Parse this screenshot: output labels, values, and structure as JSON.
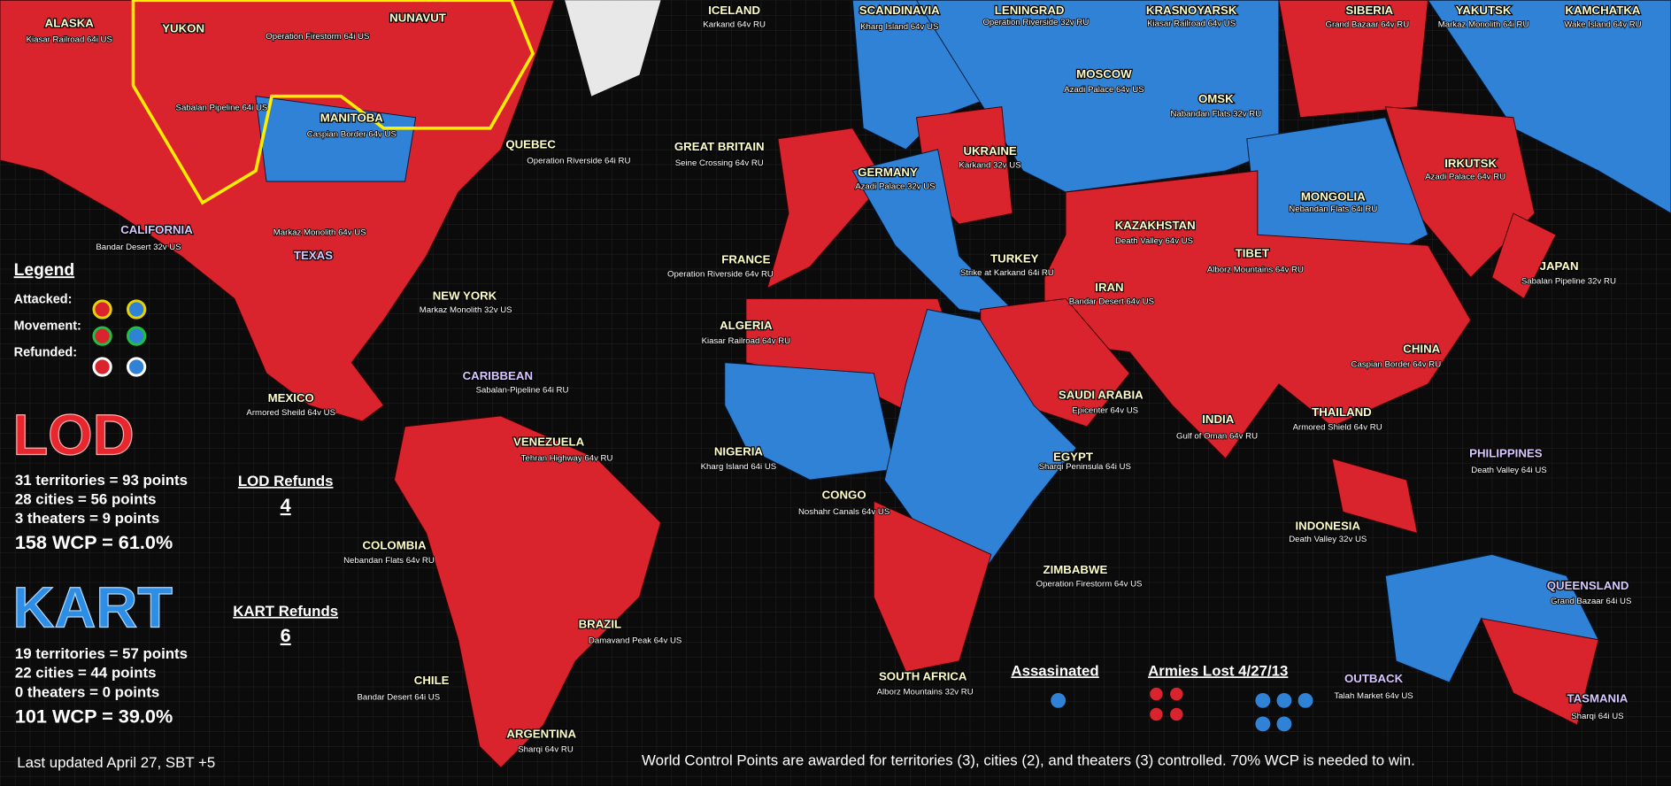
{
  "territories": [
    {
      "name": "ALASKA",
      "map": "Kiasar Railroad 64i US"
    },
    {
      "name": "YUKON",
      "map": "Sabalan Pipeline 64i US"
    },
    {
      "name": "NUNAVUT",
      "map": "Operation Firestorm 64i US"
    },
    {
      "name": "MANITOBA",
      "map": "Caspian Border 64v US"
    },
    {
      "name": "QUEBEC",
      "map": "Operation Riverside 64i RU"
    },
    {
      "name": "CALIFORNIA",
      "map": "Bandar Desert 32v US"
    },
    {
      "name": "TEXAS",
      "map": "Markaz Monolith 64v US"
    },
    {
      "name": "NEW YORK",
      "map": "Markaz Monolith 32v US"
    },
    {
      "name": "MEXICO",
      "map": "Armored Sheild 64v US"
    },
    {
      "name": "CARIBBEAN",
      "map": "Sabalan-Pipeline 64i RU"
    },
    {
      "name": "VENEZUELA",
      "map": "Tehran Highway 64v RU"
    },
    {
      "name": "COLOMBIA",
      "map": "Nebandan Flats 64v RU"
    },
    {
      "name": "BRAZIL",
      "map": "Damavand Peak 64v US"
    },
    {
      "name": "CHILE",
      "map": "Bandar Desert 64i US"
    },
    {
      "name": "ARGENTINA",
      "map": "Sharqi 64v RU"
    },
    {
      "name": "ICELAND",
      "map": "Karkand 64v RU"
    },
    {
      "name": "GREAT BRITAIN",
      "map": "Seine Crossing 64v RU"
    },
    {
      "name": "FRANCE",
      "map": "Operation Riverside 64v RU"
    },
    {
      "name": "ALGERIA",
      "map": "Kiasar Railroad 64v RU"
    },
    {
      "name": "NIGERIA",
      "map": "Kharg Island 64i US"
    },
    {
      "name": "CONGO",
      "map": "Noshahr Canals 64v US"
    },
    {
      "name": "SOUTH AFRICA",
      "map": "Alborz Mountains 32v RU"
    },
    {
      "name": "ZIMBABWE",
      "map": "Operation Firestorm 64v US"
    },
    {
      "name": "EGYPT",
      "map": "Sharqi Peninsula 64i US"
    },
    {
      "name": "SAUDI ARABIA",
      "map": "Epicenter 64v US"
    },
    {
      "name": "SCANDINAVIA",
      "map": "Kharg Island 64v US"
    },
    {
      "name": "GERMANY",
      "map": "Azadi Palace 32v US"
    },
    {
      "name": "UKRAINE",
      "map": "Karkand 32v US"
    },
    {
      "name": "LENINGRAD",
      "map": "Operation Riverside 32v RU"
    },
    {
      "name": "MOSCOW",
      "map": "Azadi Palace 64v US"
    },
    {
      "name": "KRASNOYARSK",
      "map": "Kiasar Railroad 64v US"
    },
    {
      "name": "OMSK",
      "map": "Nabandan Flats 32v RU"
    },
    {
      "name": "TURKEY",
      "map": "Strike at Karkand 64i RU"
    },
    {
      "name": "KAZAKHSTAN",
      "map": "Death Valley 64v US"
    },
    {
      "name": "IRAN",
      "map": "Bandar Desert 64v US"
    },
    {
      "name": "TIBET",
      "map": "Alborz Mountains 64v RU"
    },
    {
      "name": "INDIA",
      "map": "Gulf of Oman 64v RU"
    },
    {
      "name": "SIBERIA",
      "map": "Grand Bazaar 64v RU"
    },
    {
      "name": "YAKUTSK",
      "map": "Markaz Monolith 64i RU"
    },
    {
      "name": "KAMCHATKA",
      "map": "Wake Island 64v RU"
    },
    {
      "name": "MONGOLIA",
      "map": "Nebandan Flats 64i RU"
    },
    {
      "name": "IRKUTSK",
      "map": "Azadi Palace 64v RU"
    },
    {
      "name": "JAPAN",
      "map": "Sabalan Pipeline 32v RU"
    },
    {
      "name": "CHINA",
      "map": "Caspian Border 64v RU"
    },
    {
      "name": "THAILAND",
      "map": "Armored Shield 64v RU"
    },
    {
      "name": "PHILIPPINES",
      "map": "Death Valley 64i US"
    },
    {
      "name": "INDONESIA",
      "map": "Death Valley 32v US"
    },
    {
      "name": "QUEENSLAND",
      "map": "Grand Bazaar 64i US"
    },
    {
      "name": "OUTBACK",
      "map": "Talah Market 64v US"
    },
    {
      "name": "TASMANIA",
      "map": "Sharqi 64i US"
    }
  ],
  "legend": {
    "title": "Legend",
    "attacked": "Attacked:",
    "movement": "Movement:",
    "refunded": "Refunded:"
  },
  "lod": {
    "name": "LOD",
    "lines": [
      "31 territories = 93 points",
      "28 cities = 56 points",
      "3 theaters = 9 points"
    ],
    "total": "158 WCP = 61.0%",
    "refunds_label": "LOD Refunds",
    "refunds": "4"
  },
  "kart": {
    "name": "KART",
    "lines": [
      "19 territories = 57 points",
      "22 cities = 44 points",
      "0 theaters = 0 points"
    ],
    "total": "101 WCP = 39.0%",
    "refunds_label": "KART Refunds",
    "refunds": "6"
  },
  "assassinated": "Assasinated",
  "armies_lost": "Armies Lost 4/27/13",
  "footer": {
    "updated": "Last updated April  27, SBT +5",
    "note": "World Control Points are awarded for territories (3), cities (2), and theaters (3) controlled. 70% WCP is needed to win."
  }
}
